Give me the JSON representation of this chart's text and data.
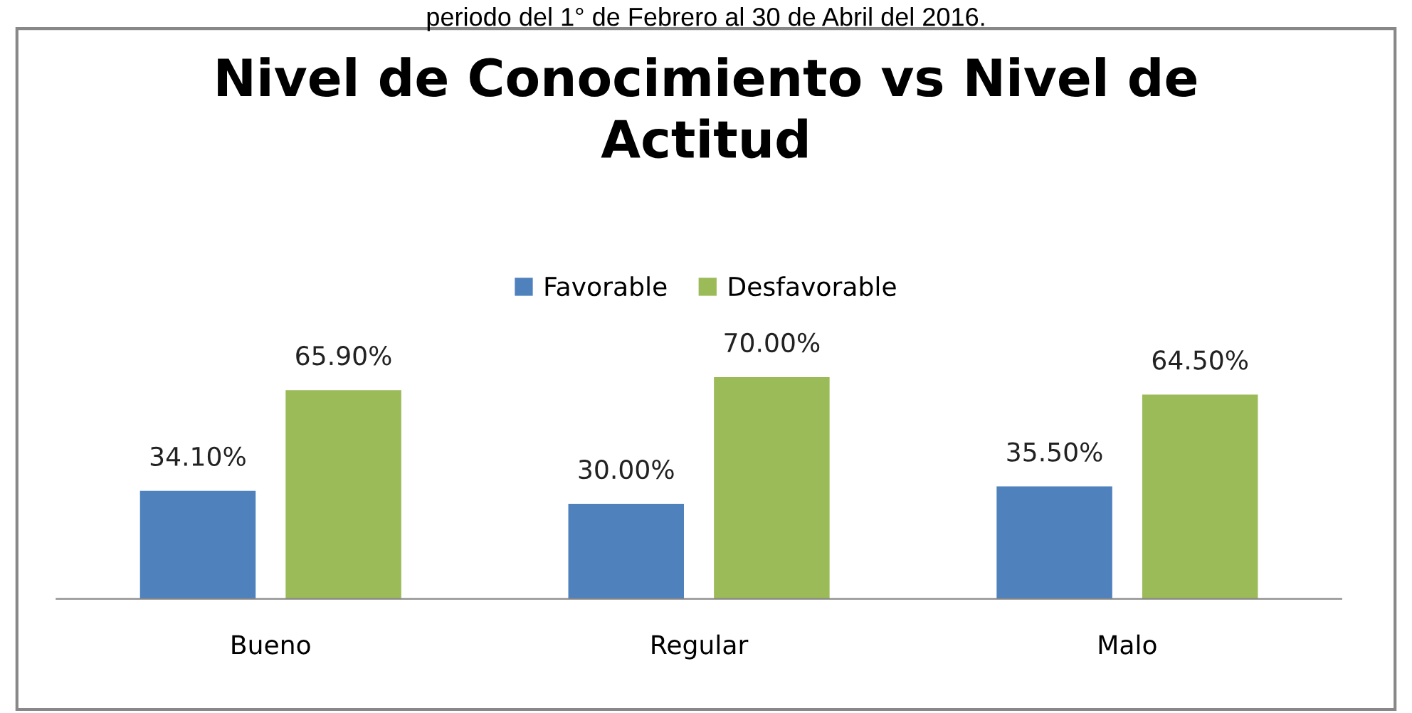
{
  "chart_data": {
    "type": "bar",
    "title": "Nivel de Conocimiento vs Nivel de\nActitud",
    "annotations": [
      "periodo del 1° de Febrero al 30 de Abril del 2016."
    ],
    "categories": [
      "Bueno",
      "Regular",
      "Malo"
    ],
    "series": [
      {
        "name": "Favorable",
        "color": "#4f81bd",
        "values": [
          34.1,
          30.0,
          35.5
        ],
        "value_labels": [
          "34.10%",
          "30.00%",
          "35.50%"
        ]
      },
      {
        "name": "Desfavorable",
        "color": "#9bbb59",
        "values": [
          65.9,
          70.0,
          64.5
        ],
        "value_labels": [
          "65.90%",
          "70.00%",
          "64.50%"
        ]
      }
    ],
    "legend": "top",
    "grid": false
  }
}
